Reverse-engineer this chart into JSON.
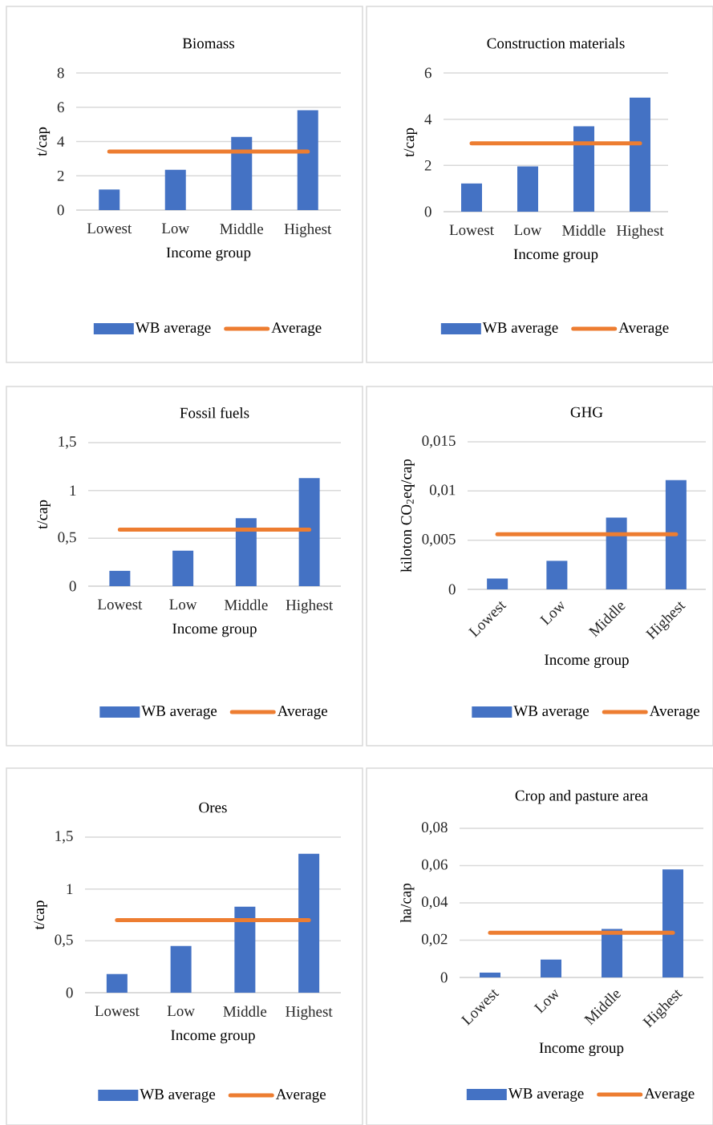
{
  "chart_data": [
    {
      "type": "bar",
      "title": "Biomass",
      "xlabel": "Income group",
      "ylabel": "t/cap",
      "categories": [
        "Lowest",
        "Low",
        "Middle",
        "Highest"
      ],
      "series": [
        {
          "name": "WB average",
          "color": "#4472c4",
          "values": [
            1.2,
            2.35,
            4.27,
            5.83
          ]
        },
        {
          "name": "Average",
          "type": "line",
          "color": "#ed7d31",
          "values": [
            3.41,
            3.41,
            3.41,
            3.41
          ]
        }
      ],
      "ylim": [
        0,
        8
      ],
      "yticks": [
        0,
        2,
        4,
        6,
        8
      ],
      "grid": "y",
      "legend": "bottom"
    },
    {
      "type": "bar",
      "title": "Construction materials",
      "xlabel": "Income group",
      "ylabel": "t/cap",
      "categories": [
        "Lowest",
        "Low",
        "Middle",
        "Highest"
      ],
      "series": [
        {
          "name": "WB average",
          "color": "#4472c4",
          "values": [
            1.22,
            1.96,
            3.69,
            4.93
          ]
        },
        {
          "name": "Average",
          "type": "line",
          "color": "#ed7d31",
          "values": [
            2.96,
            2.96,
            2.96,
            2.96
          ]
        }
      ],
      "ylim": [
        0,
        6
      ],
      "yticks": [
        0,
        2,
        4,
        6
      ],
      "grid": "y",
      "legend": "bottom"
    },
    {
      "type": "bar",
      "title": "Fossil fuels",
      "xlabel": "Income group",
      "ylabel": "t/cap",
      "categories": [
        "Lowest",
        "Low",
        "Middle",
        "Highest"
      ],
      "series": [
        {
          "name": "WB average",
          "color": "#4472c4",
          "values": [
            0.16,
            0.37,
            0.71,
            1.13
          ]
        },
        {
          "name": "Average",
          "type": "line",
          "color": "#ed7d31",
          "values": [
            0.59,
            0.59,
            0.59,
            0.59
          ]
        }
      ],
      "ylim": [
        0,
        1.5
      ],
      "yticks": [
        0,
        {
          "value": 0.5,
          "label": "0,5"
        },
        1,
        {
          "value": 1.5,
          "label": "1,5"
        }
      ],
      "grid": "y",
      "legend": "bottom"
    },
    {
      "type": "bar",
      "title": "GHG",
      "xlabel": "Income group",
      "ylabel": "kiloton CO$_{2}$eq/cap",
      "categories": [
        "Lowest",
        "Low",
        "Middle",
        "Highest"
      ],
      "series": [
        {
          "name": "WB average",
          "color": "#4472c4",
          "values": [
            0.0011,
            0.0029,
            0.0073,
            0.0111
          ]
        },
        {
          "name": "Average",
          "type": "line",
          "color": "#ed7d31",
          "values": [
            0.0056,
            0.0056,
            0.0056,
            0.0056
          ]
        }
      ],
      "ylim": [
        0,
        0.015
      ],
      "yticks": [
        0,
        {
          "value": 0.005,
          "label": "0,005"
        },
        {
          "value": 0.01,
          "label": "0,01"
        },
        {
          "value": 0.015,
          "label": "0,015"
        }
      ],
      "grid": "y",
      "legend": "bottom"
    },
    {
      "type": "bar",
      "title": "Ores",
      "xlabel": "Income group",
      "ylabel": "t/cap",
      "categories": [
        "Lowest",
        "Low",
        "Middle",
        "Highest"
      ],
      "series": [
        {
          "name": "WB average",
          "color": "#4472c4",
          "values": [
            0.18,
            0.45,
            0.83,
            1.34
          ]
        },
        {
          "name": "Average",
          "type": "line",
          "color": "#ed7d31",
          "values": [
            0.7,
            0.7,
            0.7,
            0.7
          ]
        }
      ],
      "ylim": [
        0,
        1.5
      ],
      "yticks": [
        0,
        {
          "value": 0.5,
          "label": "0,5"
        },
        1,
        {
          "value": 1.5,
          "label": "1,5"
        }
      ],
      "grid": "y",
      "legend": "bottom"
    },
    {
      "type": "bar",
      "title": "Crop and pasture area",
      "xlabel": "Income group",
      "ylabel": "ha/cap",
      "categories": [
        "Lowest",
        "Low",
        "Middle",
        "Highest"
      ],
      "series": [
        {
          "name": "WB average",
          "color": "#4472c4",
          "values": [
            0.0026,
            0.0096,
            0.026,
            0.058
          ]
        },
        {
          "name": "Average",
          "type": "line",
          "color": "#ed7d31",
          "values": [
            0.024,
            0.024,
            0.024,
            0.024
          ]
        }
      ],
      "ylim": [
        0,
        0.08
      ],
      "yticks": [
        0,
        {
          "value": 0.02,
          "label": "0,02"
        },
        {
          "value": 0.04,
          "label": "0,04"
        },
        {
          "value": 0.06,
          "label": "0,06"
        },
        {
          "value": 0.08,
          "label": "0,08"
        }
      ],
      "grid": "y",
      "legend": "bottom"
    }
  ]
}
